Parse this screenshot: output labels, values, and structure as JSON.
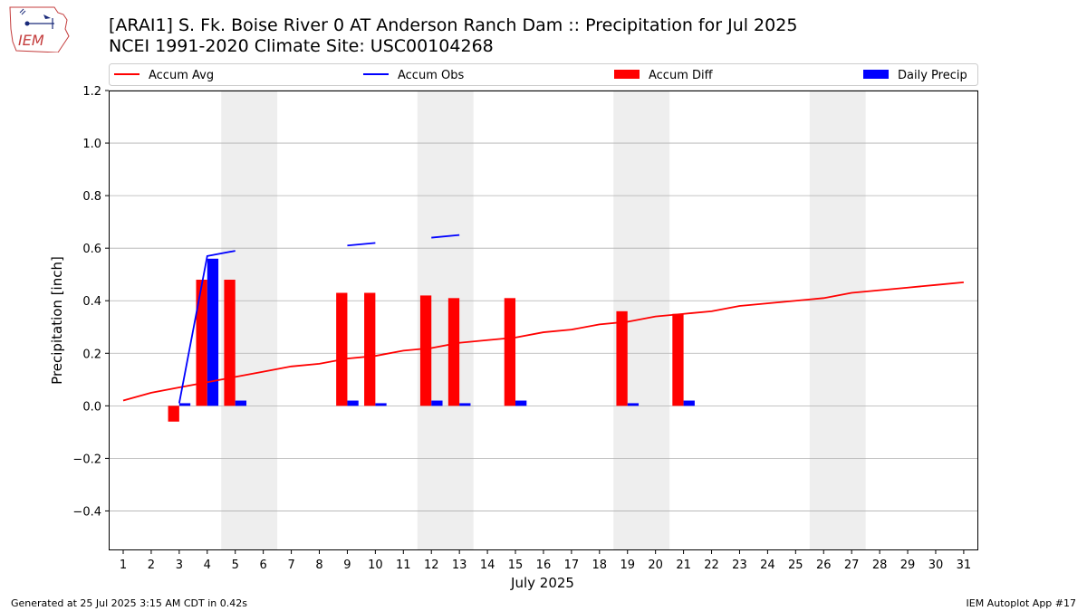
{
  "header": {
    "title_line1": "[ARAI1] S. Fk. Boise River 0 AT Anderson Ranch Dam :: Precipitation for Jul 2025",
    "title_line2": "NCEI 1991-2020 Climate Site: USC00104268",
    "logo_text": "IEM"
  },
  "footer": {
    "generated": "Generated at 25 Jul 2025 3:15 AM CDT in 0.42s",
    "app": "IEM Autoplot App #17"
  },
  "chart_data": {
    "type": "bar",
    "xlabel": "July 2025",
    "ylabel": "Precipitation [inch]",
    "ylim": [
      -0.55,
      1.2
    ],
    "yticks": [
      -0.4,
      -0.2,
      0.0,
      0.2,
      0.4,
      0.6,
      0.8,
      1.0,
      1.2
    ],
    "ytick_labels": [
      "−0.4",
      "−0.2",
      "0.0",
      "0.2",
      "0.4",
      "0.6",
      "0.8",
      "1.0",
      "1.2"
    ],
    "x": [
      1,
      2,
      3,
      4,
      5,
      6,
      7,
      8,
      9,
      10,
      11,
      12,
      13,
      14,
      15,
      16,
      17,
      18,
      19,
      20,
      21,
      22,
      23,
      24,
      25,
      26,
      27,
      28,
      29,
      30,
      31
    ],
    "weekend_bands": [
      [
        4.5,
        6.5
      ],
      [
        11.5,
        13.5
      ],
      [
        18.5,
        20.5
      ],
      [
        25.5,
        27.5
      ]
    ],
    "grid": "horizontal",
    "legend_placement": "top",
    "legend": [
      {
        "label": "Accum Avg",
        "kind": "line",
        "color": "#ff0000"
      },
      {
        "label": "Accum Obs",
        "kind": "line",
        "color": "#0000ff"
      },
      {
        "label": "Accum Diff",
        "kind": "bar",
        "color": "#ff0000"
      },
      {
        "label": "Daily Precip",
        "kind": "bar",
        "color": "#0000ff"
      }
    ],
    "series": [
      {
        "name": "Accum Avg",
        "kind": "line",
        "color": "#ff0000",
        "values": [
          0.02,
          0.05,
          0.07,
          0.09,
          0.11,
          0.13,
          0.15,
          0.16,
          0.18,
          0.19,
          0.21,
          0.22,
          0.24,
          0.25,
          0.26,
          0.28,
          0.29,
          0.31,
          0.32,
          0.34,
          0.35,
          0.36,
          0.38,
          0.39,
          0.4,
          0.41,
          0.43,
          0.44,
          0.45,
          0.46,
          0.47
        ]
      },
      {
        "name": "Accum Obs",
        "kind": "line",
        "color": "#0000ff",
        "values": [
          null,
          null,
          0.01,
          0.57,
          0.59,
          null,
          null,
          null,
          0.61,
          0.62,
          null,
          0.64,
          0.65,
          null,
          null,
          null,
          null,
          null,
          null,
          null,
          null,
          null,
          null,
          null,
          null,
          null,
          null,
          null,
          null,
          null,
          null
        ]
      },
      {
        "name": "Accum Diff",
        "kind": "bar",
        "color": "#ff0000",
        "values": [
          null,
          null,
          -0.06,
          0.48,
          0.48,
          null,
          null,
          null,
          0.43,
          0.43,
          null,
          0.42,
          0.41,
          null,
          0.41,
          null,
          null,
          null,
          0.36,
          null,
          0.35,
          null,
          null,
          null,
          null,
          null,
          null,
          null,
          null,
          null,
          null
        ]
      },
      {
        "name": "Daily Precip",
        "kind": "bar",
        "color": "#0000ff",
        "values": [
          null,
          null,
          0.01,
          0.56,
          0.02,
          null,
          null,
          null,
          0.02,
          0.01,
          null,
          0.02,
          0.01,
          null,
          0.02,
          null,
          null,
          null,
          0.01,
          null,
          0.02,
          null,
          null,
          null,
          null,
          null,
          null,
          null,
          null,
          null,
          null
        ]
      }
    ]
  }
}
